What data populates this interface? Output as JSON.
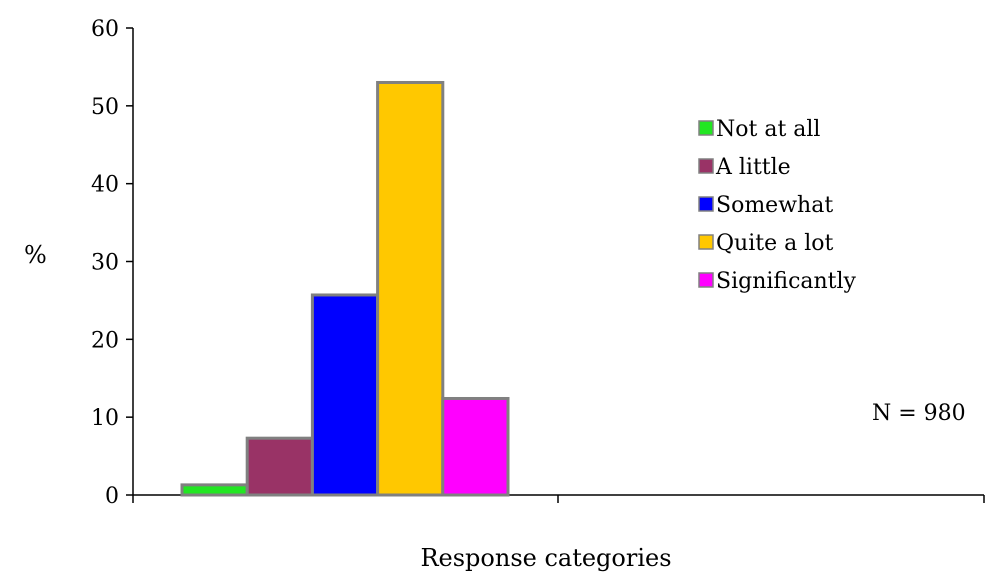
{
  "chart_data": {
    "type": "bar",
    "title": "",
    "xlabel": "Response categories",
    "ylabel": "%",
    "ylim": [
      0,
      60
    ],
    "yticks": [
      0,
      10,
      20,
      30,
      40,
      50,
      60
    ],
    "grid": false,
    "legend_position": "right",
    "annotation": "N = 980",
    "series": [
      {
        "name": "Not at all",
        "value": 1.3,
        "color": "#22E622"
      },
      {
        "name": "A little",
        "value": 7.3,
        "color": "#993366"
      },
      {
        "name": "Somewhat",
        "value": 25.7,
        "color": "#0000FF"
      },
      {
        "name": "Quite a lot",
        "value": 53,
        "color": "#FFC800"
      },
      {
        "name": "Significantly",
        "value": 12.4,
        "color": "#FF00FF"
      }
    ],
    "bar_outline_color": "#808080"
  }
}
